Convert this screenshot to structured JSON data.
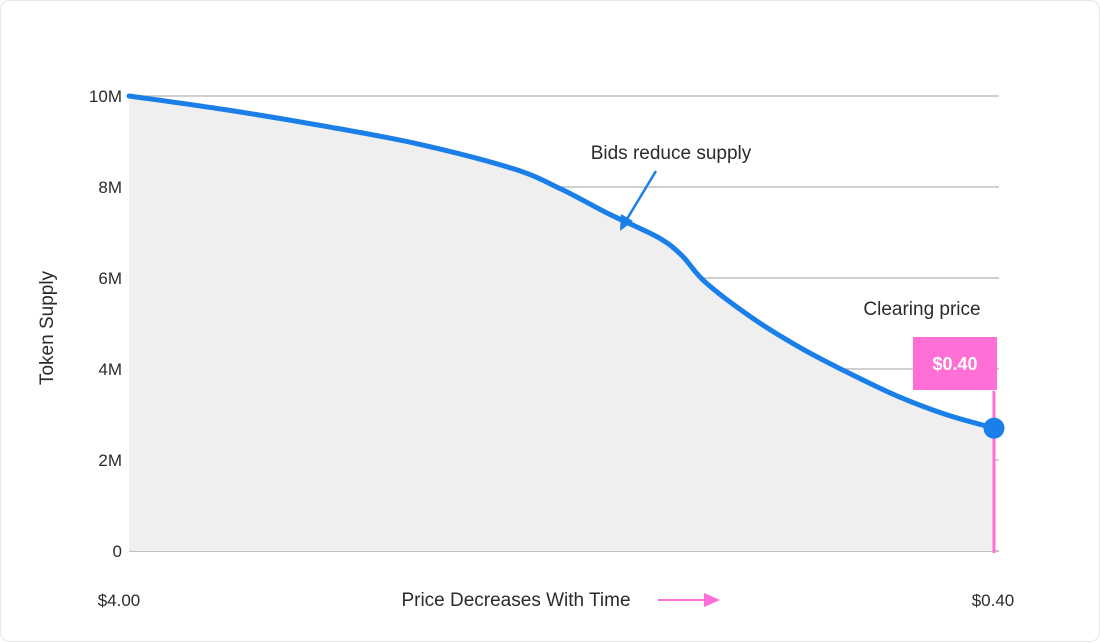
{
  "chart_data": {
    "type": "area",
    "ylabel": "Token Supply",
    "xlabel": "Price Decreases With Time",
    "x_start_label": "$4.00",
    "x_end_label": "$0.40",
    "yticks": [
      "0",
      "2M",
      "4M",
      "6M",
      "8M",
      "10M"
    ],
    "ylim": [
      0,
      10000000
    ],
    "grid": true,
    "series": [
      {
        "color": "#1a7fe8",
        "fill": "#efefef",
        "x": [
          4.0,
          3.6,
          3.2,
          2.8,
          2.4,
          2.2,
          2.0,
          1.8,
          1.7,
          1.6,
          1.4,
          1.2,
          1.0,
          0.8,
          0.6,
          0.4
        ],
        "y": [
          10000000,
          9700000,
          9350000,
          8950000,
          8400000,
          7950000,
          7400000,
          6900000,
          6500000,
          5900000,
          5100000,
          4450000,
          3900000,
          3400000,
          3000000,
          2700000
        ]
      }
    ],
    "annotations": {
      "bids_text": "Bids reduce supply",
      "clearing_text": "Clearing price",
      "clearing_value": "$0.40",
      "clearing_x": 0.4,
      "clearing_y": 2700000,
      "annotation_color": "#ff6fd5",
      "arrow_color": "#1a7fe8"
    }
  }
}
